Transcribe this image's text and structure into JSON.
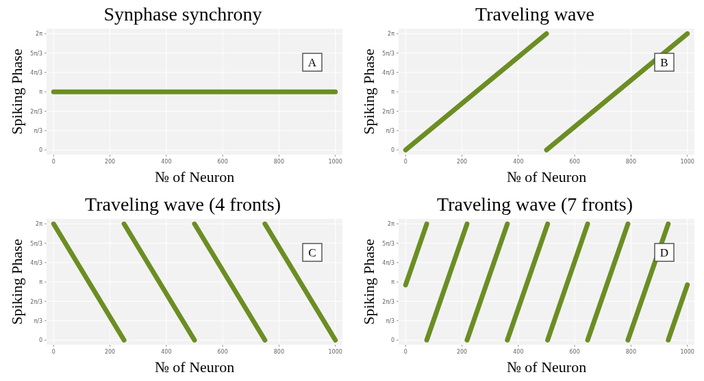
{
  "chart_data": [
    {
      "type": "line",
      "title": "Synphase synchrony",
      "xlabel": "№ of Neuron",
      "ylabel": "Spiking Phase",
      "annotations": [
        "A"
      ],
      "grid": true,
      "xlim": [
        -25,
        1025
      ],
      "ylim": [
        -0.25,
        6.55
      ],
      "xticks": [
        0,
        200,
        400,
        600,
        800,
        1000
      ],
      "yticks": [
        {
          "value": 0,
          "label": "0"
        },
        {
          "value": 1.047,
          "label": "π/3"
        },
        {
          "value": 2.094,
          "label": "2π/3"
        },
        {
          "value": 3.142,
          "label": "π"
        },
        {
          "value": 4.189,
          "label": "4π/3"
        },
        {
          "value": 5.236,
          "label": "5π/3"
        },
        {
          "value": 6.283,
          "label": "2π"
        }
      ],
      "series": [
        {
          "color": "#6b8e23",
          "x": [
            0,
            1000
          ],
          "values": [
            3.14,
            3.14
          ]
        }
      ]
    },
    {
      "type": "line",
      "title": "Traveling wave",
      "xlabel": "№ of Neuron",
      "ylabel": "Spiking Phase",
      "annotations": [
        "B"
      ],
      "grid": true,
      "xlim": [
        -25,
        1025
      ],
      "ylim": [
        -0.25,
        6.55
      ],
      "xticks": [
        0,
        200,
        400,
        600,
        800,
        1000
      ],
      "yticks": [
        {
          "value": 0,
          "label": "0"
        },
        {
          "value": 1.047,
          "label": "π/3"
        },
        {
          "value": 2.094,
          "label": "2π/3"
        },
        {
          "value": 3.142,
          "label": "π"
        },
        {
          "value": 4.189,
          "label": "4π/3"
        },
        {
          "value": 5.236,
          "label": "5π/3"
        },
        {
          "value": 6.283,
          "label": "2π"
        }
      ],
      "series": [
        {
          "color": "#6b8e23",
          "x": [
            0,
            500
          ],
          "values": [
            0,
            6.28
          ]
        },
        {
          "color": "#6b8e23",
          "x": [
            500,
            1000
          ],
          "values": [
            0,
            6.28
          ]
        }
      ]
    },
    {
      "type": "line",
      "title": "Traveling wave (4 fronts)",
      "xlabel": "№ of Neuron",
      "ylabel": "Spiking Phase",
      "annotations": [
        "C"
      ],
      "grid": true,
      "xlim": [
        -25,
        1025
      ],
      "ylim": [
        -0.25,
        6.55
      ],
      "xticks": [
        0,
        200,
        400,
        600,
        800,
        1000
      ],
      "yticks": [
        {
          "value": 0,
          "label": "0"
        },
        {
          "value": 1.047,
          "label": "π/3"
        },
        {
          "value": 2.094,
          "label": "2π/3"
        },
        {
          "value": 3.142,
          "label": "π"
        },
        {
          "value": 4.189,
          "label": "4π/3"
        },
        {
          "value": 5.236,
          "label": "5π/3"
        },
        {
          "value": 6.283,
          "label": "2π"
        }
      ],
      "series": [
        {
          "color": "#6b8e23",
          "x": [
            0,
            250
          ],
          "values": [
            6.28,
            0
          ]
        },
        {
          "color": "#6b8e23",
          "x": [
            250,
            500
          ],
          "values": [
            6.28,
            0
          ]
        },
        {
          "color": "#6b8e23",
          "x": [
            500,
            750
          ],
          "values": [
            6.28,
            0
          ]
        },
        {
          "color": "#6b8e23",
          "x": [
            750,
            1000
          ],
          "values": [
            6.28,
            0
          ]
        }
      ]
    },
    {
      "type": "line",
      "title": "Traveling wave (7 fronts)",
      "xlabel": "№ of Neuron",
      "ylabel": "Spiking Phase",
      "annotations": [
        "D"
      ],
      "grid": true,
      "xlim": [
        -25,
        1025
      ],
      "ylim": [
        -0.25,
        6.55
      ],
      "xticks": [
        0,
        200,
        400,
        600,
        800,
        1000
      ],
      "yticks": [
        {
          "value": 0,
          "label": "0"
        },
        {
          "value": 1.047,
          "label": "π/3"
        },
        {
          "value": 2.094,
          "label": "2π/3"
        },
        {
          "value": 3.142,
          "label": "π"
        },
        {
          "value": 4.189,
          "label": "4π/3"
        },
        {
          "value": 5.236,
          "label": "5π/3"
        },
        {
          "value": 6.283,
          "label": "2π"
        }
      ],
      "series": [
        {
          "color": "#6b8e23",
          "x": [
            0,
            75
          ],
          "values": [
            2.98,
            6.28
          ]
        },
        {
          "color": "#6b8e23",
          "x": [
            75,
            218
          ],
          "values": [
            0,
            6.28
          ]
        },
        {
          "color": "#6b8e23",
          "x": [
            218,
            361
          ],
          "values": [
            0,
            6.28
          ]
        },
        {
          "color": "#6b8e23",
          "x": [
            361,
            504
          ],
          "values": [
            0,
            6.28
          ]
        },
        {
          "color": "#6b8e23",
          "x": [
            504,
            646
          ],
          "values": [
            0,
            6.28
          ]
        },
        {
          "color": "#6b8e23",
          "x": [
            646,
            789
          ],
          "values": [
            0,
            6.28
          ]
        },
        {
          "color": "#6b8e23",
          "x": [
            789,
            932
          ],
          "values": [
            0,
            6.28
          ]
        },
        {
          "color": "#6b8e23",
          "x": [
            932,
            1000
          ],
          "values": [
            0,
            2.99
          ]
        }
      ]
    }
  ]
}
